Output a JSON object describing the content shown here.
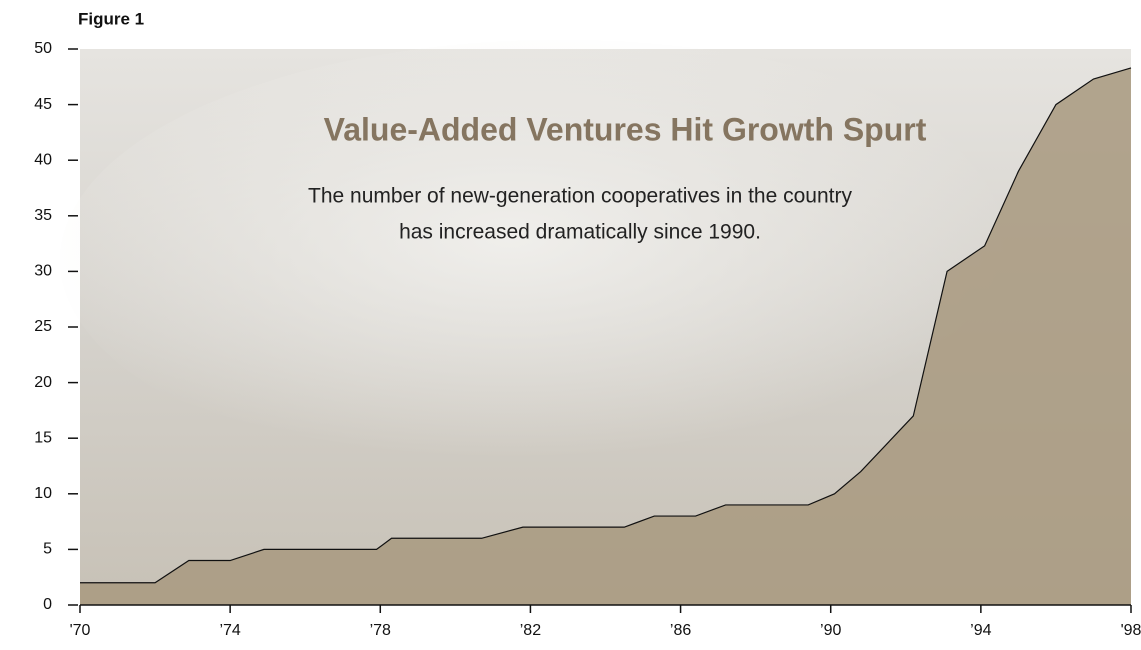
{
  "chart_data": {
    "type": "area",
    "figure_label": "Figure 1",
    "title": "Value-Added Ventures Hit Growth Spurt",
    "subtitle_lines": [
      "The number of new-generation cooperatives in the country",
      "has increased dramatically since 1990."
    ],
    "x": [
      1970,
      1972,
      1972.9,
      1974,
      1974.9,
      1977.9,
      1978.3,
      1980.7,
      1981.8,
      1984.5,
      1985.3,
      1986.4,
      1987.2,
      1989.4,
      1990.1,
      1990.8,
      1992.2,
      1993.1,
      1994.1,
      1995,
      1996,
      1997,
      1998
    ],
    "values": [
      2,
      2,
      4,
      4,
      5,
      5,
      6,
      6,
      7,
      7,
      8,
      8,
      9,
      9,
      10,
      12,
      17,
      30,
      32.3,
      39,
      45,
      47.3,
      48.3
    ],
    "color": "#a8997f",
    "line_color": "#111111",
    "xlim": [
      1970,
      1998
    ],
    "xticks": [
      {
        "value": 1970,
        "label": "'70"
      },
      {
        "value": 1974,
        "label": "’74"
      },
      {
        "value": 1978,
        "label": "’78"
      },
      {
        "value": 1982,
        "label": "’82"
      },
      {
        "value": 1986,
        "label": "’86"
      },
      {
        "value": 1990,
        "label": "’90"
      },
      {
        "value": 1994,
        "label": "’94"
      },
      {
        "value": 1998,
        "label": "'98"
      }
    ],
    "ylim": [
      0,
      50
    ],
    "yticks": [
      0,
      5,
      10,
      15,
      20,
      25,
      30,
      35,
      40,
      45,
      50
    ]
  }
}
